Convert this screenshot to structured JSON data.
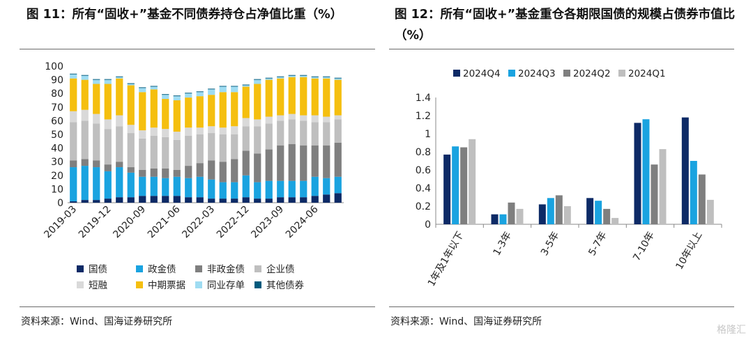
{
  "left_figure": {
    "title": "图 11：所有“固收+”基金不同债券持仓占净值比重（%）",
    "source": "资料来源：Wind、国海证券研究所"
  },
  "right_figure": {
    "title": "图 12：所有“固收+”基金重仓各期限国债的规模占债券市值比（%）",
    "source": "资料来源：Wind、国海证券研究所"
  },
  "watermark": "格隆汇",
  "colors": {
    "国债": "#0d2a66",
    "政金债": "#1aa3e0",
    "非政金债": "#7f7f7f",
    "企业债": "#bfbfbf",
    "短融": "#d9d9d9",
    "中期票据": "#f5bf0f",
    "同业存单": "#9fdcf2",
    "其他债券": "#005a7d",
    "2024Q4": "#0d2a66",
    "2024Q3": "#1aa3e0",
    "2024Q2": "#7f7f7f",
    "2024Q1": "#bfbfbf"
  },
  "chart_data": [
    {
      "type": "bar",
      "stacked": true,
      "title": "所有“固收+”基金不同债券持仓占净值比重（%）",
      "ylim": [
        0,
        100
      ],
      "yticks": [
        0,
        10,
        20,
        30,
        40,
        50,
        60,
        70,
        80,
        90,
        100
      ],
      "xtick_labels": [
        "2019-03",
        "2019-12",
        "2020-09",
        "2021-06",
        "2022-03",
        "2022-12",
        "2023-09",
        "2024-06"
      ],
      "xtick_indices": [
        0,
        3,
        6,
        9,
        12,
        15,
        18,
        21
      ],
      "categories": [
        "2019-03",
        "2019-06",
        "2019-09",
        "2019-12",
        "2020-03",
        "2020-06",
        "2020-09",
        "2020-12",
        "2021-03",
        "2021-06",
        "2021-09",
        "2021-12",
        "2022-03",
        "2022-06",
        "2022-09",
        "2022-12",
        "2023-03",
        "2023-06",
        "2023-09",
        "2023-12",
        "2024-03",
        "2024-06",
        "2024-09",
        "2024-12"
      ],
      "legend_position": "bottom",
      "series": [
        {
          "name": "国债",
          "values": [
            1,
            2,
            2,
            3,
            4,
            4,
            5,
            5,
            5,
            5,
            4,
            4,
            3,
            3,
            3,
            4,
            3,
            3,
            4,
            4,
            4,
            5,
            6,
            7
          ]
        },
        {
          "name": "政金债",
          "values": [
            25,
            25,
            24,
            20,
            22,
            18,
            14,
            14,
            13,
            14,
            14,
            15,
            14,
            12,
            12,
            16,
            12,
            13,
            12,
            12,
            12,
            14,
            12,
            12
          ]
        },
        {
          "name": "非政金债",
          "values": [
            5,
            5,
            5,
            5,
            4,
            4,
            5,
            6,
            7,
            5,
            9,
            10,
            14,
            15,
            17,
            18,
            21,
            23,
            26,
            27,
            26,
            23,
            24,
            25
          ]
        },
        {
          "name": "企业债",
          "values": [
            28,
            28,
            27,
            26,
            26,
            25,
            23,
            24,
            23,
            22,
            22,
            21,
            20,
            20,
            18,
            18,
            20,
            19,
            18,
            18,
            18,
            17,
            17,
            17
          ]
        },
        {
          "name": "短融",
          "values": [
            8,
            8,
            7,
            7,
            8,
            6,
            6,
            6,
            6,
            6,
            6,
            5,
            5,
            5,
            6,
            6,
            5,
            5,
            4,
            4,
            4,
            5,
            4,
            3
          ]
        },
        {
          "name": "中期票据",
          "values": [
            24,
            22,
            22,
            26,
            27,
            29,
            28,
            28,
            22,
            23,
            22,
            23,
            23,
            26,
            25,
            23,
            26,
            27,
            27,
            27,
            28,
            27,
            28,
            26
          ]
        },
        {
          "name": "同业存单",
          "values": [
            3,
            3,
            3,
            3,
            1,
            1,
            3,
            2,
            3,
            3,
            3,
            3,
            4,
            4,
            4,
            1,
            3,
            1,
            1,
            1,
            1,
            1,
            1,
            1
          ]
        },
        {
          "name": "其他债券",
          "values": [
            0.5,
            0.5,
            0.5,
            0.5,
            0.5,
            0.5,
            0.5,
            0.5,
            0.5,
            0.5,
            0.5,
            0.5,
            0.5,
            0.5,
            0.5,
            0.5,
            0.5,
            0.5,
            0.5,
            0.5,
            0.5,
            0.5,
            0.5,
            0.5
          ]
        }
      ]
    },
    {
      "type": "bar",
      "stacked": false,
      "title": "所有“固收+”基金重仓各期限国债的规模占债券市值比（%）",
      "ylim": [
        0,
        1.4
      ],
      "yticks": [
        0,
        0.2,
        0.4,
        0.6,
        0.8,
        1,
        1.2,
        1.4
      ],
      "ytick_labels": [
        "0",
        "0.2",
        "0.4",
        "0.6",
        "0.8",
        "1",
        "1.2",
        "1.4"
      ],
      "categories": [
        "1年及1年以下",
        "1-3年",
        "3-5年",
        "5-7年",
        "7-10年",
        "10年以上"
      ],
      "legend_position": "top",
      "series": [
        {
          "name": "2024Q4",
          "values": [
            0.77,
            0.11,
            0.22,
            0.29,
            1.12,
            1.18
          ]
        },
        {
          "name": "2024Q3",
          "values": [
            0.86,
            0.11,
            0.29,
            0.26,
            1.16,
            0.7
          ]
        },
        {
          "name": "2024Q2",
          "values": [
            0.85,
            0.24,
            0.32,
            0.17,
            0.66,
            0.55
          ]
        },
        {
          "name": "2024Q1",
          "values": [
            0.94,
            0.17,
            0.2,
            0.07,
            0.83,
            0.27
          ]
        }
      ]
    }
  ]
}
